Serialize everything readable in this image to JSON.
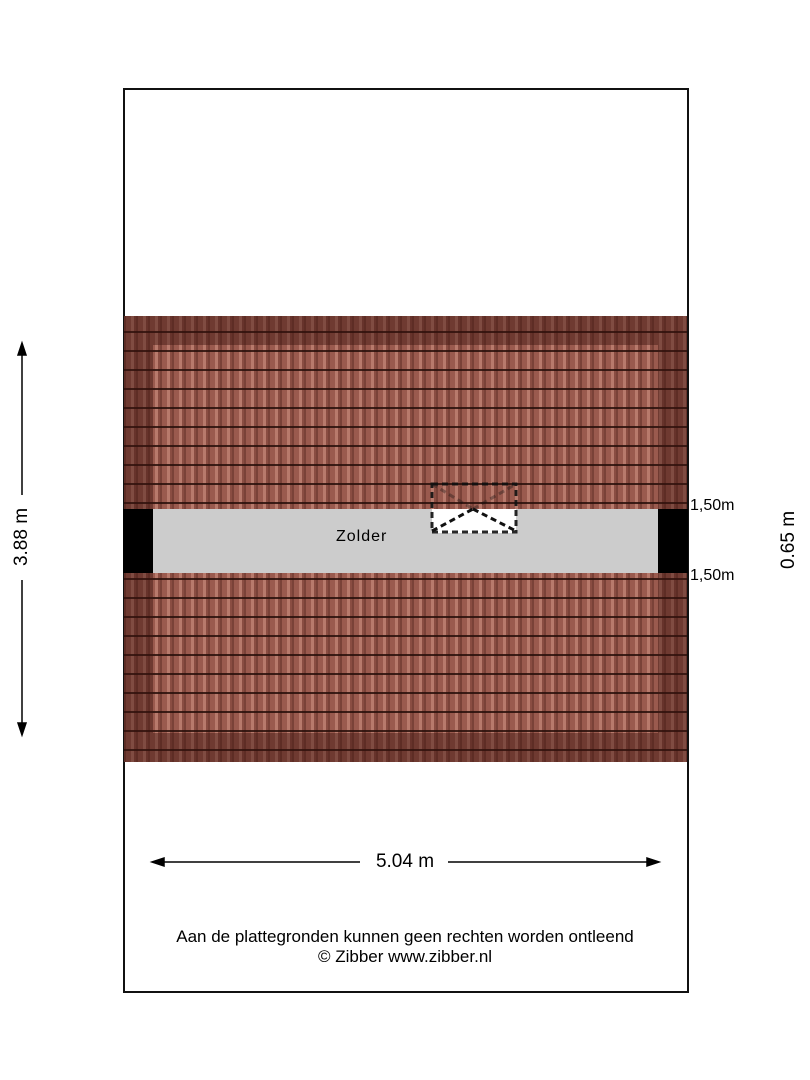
{
  "room": {
    "name": "Zolder"
  },
  "dimensions": {
    "depth": "3.88 m",
    "width": "5.04 m",
    "strip": "0.65 m",
    "height_top": "1,50m",
    "height_bottom": "1,50m"
  },
  "footer": {
    "line1": "Aan de plattegronden kunnen geen rechten worden ontleend",
    "line2": "© Zibber www.zibber.nl"
  },
  "colors": {
    "roof": "#9a5a4e",
    "floor": "#cccccc",
    "wall": "#000000"
  }
}
